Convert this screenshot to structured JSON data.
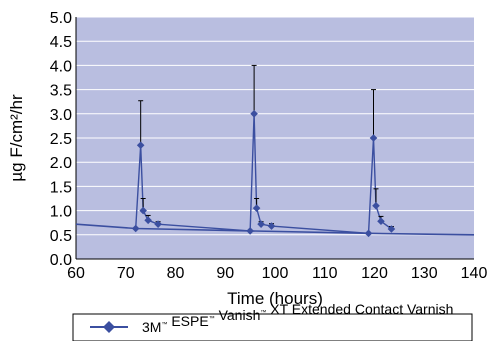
{
  "chart_data": {
    "type": "line",
    "title": "",
    "xlabel": "Time (hours)",
    "ylabel": "µg F/cm²/hr",
    "xlim": [
      60,
      140
    ],
    "ylim": [
      0.0,
      5.0
    ],
    "xticks": [
      "60",
      "70",
      "80",
      "90",
      "100",
      "110",
      "120",
      "130",
      "140"
    ],
    "yticks": [
      "0.0",
      "0.5",
      "1.0",
      "1.5",
      "2.0",
      "2.5",
      "3.0",
      "3.5",
      "4.0",
      "4.5",
      "5.0"
    ],
    "grid": true,
    "legend_position": "bottom",
    "series": [
      {
        "name": "3M™ ESPE™ Vanish™ XT Extended Contact Varnish",
        "color": "#3b4fa0",
        "points": [
          {
            "x": 72.0,
            "y": 0.63,
            "err": 0
          },
          {
            "x": 73.0,
            "y": 2.35,
            "err": 0.92
          },
          {
            "x": 73.5,
            "y": 1.0,
            "err": 0.25
          },
          {
            "x": 74.5,
            "y": 0.8,
            "err": 0.1
          },
          {
            "x": 76.5,
            "y": 0.72,
            "err": 0.05
          },
          {
            "x": 95.0,
            "y": 0.58,
            "err": 0
          },
          {
            "x": 95.8,
            "y": 3.0,
            "err": 1.0
          },
          {
            "x": 96.3,
            "y": 1.05,
            "err": 0.2
          },
          {
            "x": 97.2,
            "y": 0.72,
            "err": 0.05
          },
          {
            "x": 99.3,
            "y": 0.68,
            "err": 0.05
          },
          {
            "x": 118.8,
            "y": 0.53,
            "err": 0
          },
          {
            "x": 119.8,
            "y": 2.5,
            "err": 1.0
          },
          {
            "x": 120.3,
            "y": 1.1,
            "err": 0.35
          },
          {
            "x": 121.3,
            "y": 0.78,
            "err": 0.1
          },
          {
            "x": 123.4,
            "y": 0.62,
            "err": 0.05
          }
        ],
        "trend": [
          {
            "x": 60,
            "y": 0.72
          },
          {
            "x": 72,
            "y": 0.63
          },
          {
            "x": 95,
            "y": 0.58
          },
          {
            "x": 118.8,
            "y": 0.53
          },
          {
            "x": 140,
            "y": 0.5
          }
        ]
      }
    ]
  },
  "legend": {
    "parts": [
      {
        "text": "3M",
        "tm": true
      },
      {
        "text": " ESPE",
        "tm": true
      },
      {
        "text": " Vanish",
        "tm": true
      },
      {
        "text": " XT Extended Contact Varnish",
        "tm": false
      }
    ],
    "tm_symbol": "™"
  },
  "colors": {
    "plot_background": "#b9bee0",
    "gridline": "#ffffff",
    "series": "#3b4fa0",
    "error_bar": "#000000"
  }
}
